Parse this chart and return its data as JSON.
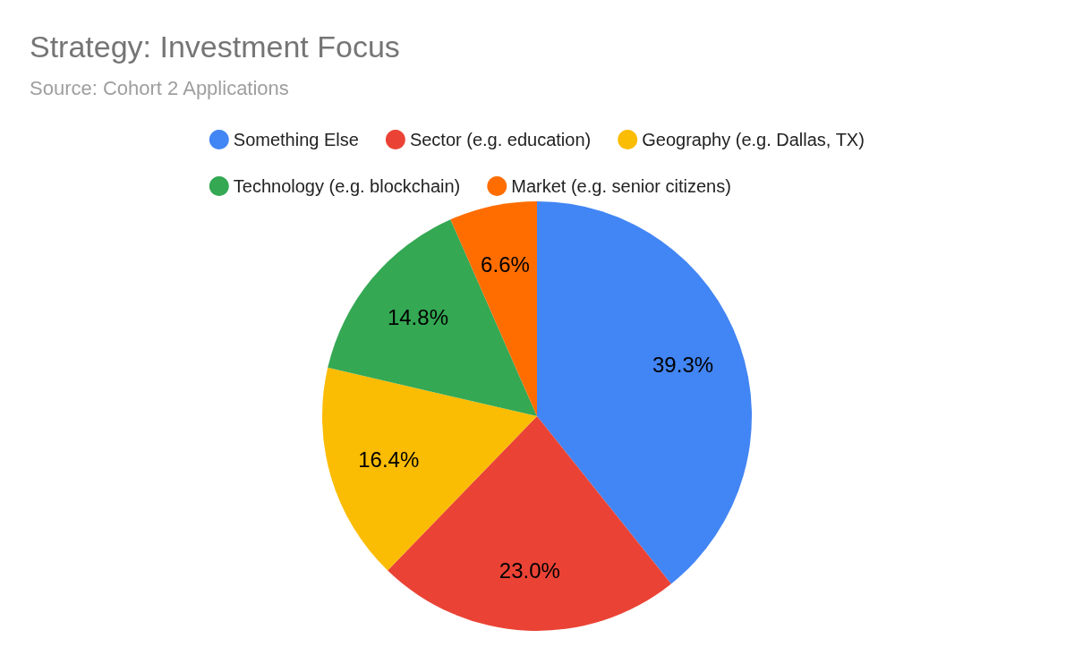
{
  "chart_data": {
    "type": "pie",
    "title": "Strategy: Investment Focus",
    "subtitle": "Source: Cohort 2 Applications",
    "categories": [
      "Something Else",
      "Sector (e.g. education)",
      "Geography (e.g. Dallas, TX)",
      "Technology (e.g. blockchain)",
      "Market (e.g. senior citizens)"
    ],
    "values": [
      39.3,
      23.0,
      16.4,
      14.8,
      6.6
    ],
    "colors": [
      "#4285f4",
      "#ea4335",
      "#fbbc04",
      "#34a853",
      "#ff6d01"
    ],
    "value_labels": [
      "39.3%",
      "23.0%",
      "16.4%",
      "14.8%",
      "6.6%"
    ],
    "legend": "top"
  }
}
